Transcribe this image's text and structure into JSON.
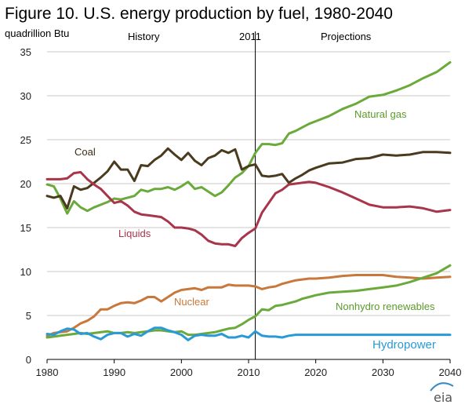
{
  "chart_data": {
    "type": "line",
    "title": "Figure 10. U.S. energy production by fuel, 1980-2040",
    "ylabel": "quadrillion Btu",
    "xlabel": "",
    "xlim": [
      1980,
      2040
    ],
    "ylim": [
      0,
      35
    ],
    "x_ticks": [
      1980,
      1990,
      2000,
      2010,
      2020,
      2030,
      2040
    ],
    "y_ticks": [
      0,
      5,
      10,
      15,
      20,
      25,
      30,
      35
    ],
    "grid": "horizontal",
    "divider_year": 2011,
    "divider_label": "2011",
    "region_labels": {
      "history": "History",
      "projections": "Projections"
    },
    "series": [
      {
        "name": "Natural gas",
        "color": "#6aaa3a",
        "x": [
          1980,
          1981,
          1982,
          1983,
          1984,
          1985,
          1986,
          1987,
          1988,
          1989,
          1990,
          1991,
          1992,
          1993,
          1994,
          1995,
          1996,
          1997,
          1998,
          1999,
          2000,
          2001,
          2002,
          2003,
          2004,
          2005,
          2006,
          2007,
          2008,
          2009,
          2010,
          2011,
          2012,
          2013,
          2014,
          2015,
          2016,
          2017,
          2018,
          2019,
          2020,
          2022,
          2024,
          2026,
          2028,
          2030,
          2032,
          2034,
          2036,
          2038,
          2040
        ],
        "values": [
          19.9,
          19.7,
          18.3,
          16.6,
          18.0,
          17.3,
          16.9,
          17.3,
          17.6,
          17.9,
          18.3,
          18.2,
          18.4,
          18.6,
          19.3,
          19.1,
          19.4,
          19.4,
          19.6,
          19.3,
          19.7,
          20.2,
          19.4,
          19.6,
          19.1,
          18.6,
          19.0,
          19.8,
          20.7,
          21.2,
          22.0,
          23.5,
          24.5,
          24.5,
          24.4,
          24.6,
          25.7,
          26.0,
          26.4,
          26.8,
          27.1,
          27.7,
          28.5,
          29.1,
          29.9,
          30.1,
          30.6,
          31.2,
          32.0,
          32.7,
          33.8
        ]
      },
      {
        "name": "Coal",
        "color": "#4a3a1e",
        "x": [
          1980,
          1981,
          1982,
          1983,
          1984,
          1985,
          1986,
          1987,
          1988,
          1989,
          1990,
          1991,
          1992,
          1993,
          1994,
          1995,
          1996,
          1997,
          1998,
          1999,
          2000,
          2001,
          2002,
          2003,
          2004,
          2005,
          2006,
          2007,
          2008,
          2009,
          2010,
          2011,
          2012,
          2013,
          2014,
          2015,
          2016,
          2017,
          2018,
          2019,
          2020,
          2022,
          2024,
          2026,
          2028,
          2030,
          2032,
          2034,
          2036,
          2038,
          2040
        ],
        "values": [
          18.6,
          18.4,
          18.6,
          17.2,
          19.7,
          19.3,
          19.5,
          20.1,
          20.7,
          21.4,
          22.5,
          21.6,
          21.6,
          20.3,
          22.1,
          22.0,
          22.7,
          23.2,
          24.0,
          23.3,
          22.7,
          23.5,
          22.6,
          22.1,
          22.9,
          23.2,
          23.8,
          23.5,
          23.9,
          21.6,
          22.0,
          22.2,
          20.9,
          20.8,
          20.9,
          21.1,
          20.1,
          20.6,
          21.0,
          21.5,
          21.8,
          22.3,
          22.4,
          22.8,
          22.9,
          23.3,
          23.2,
          23.3,
          23.6,
          23.6,
          23.5
        ]
      },
      {
        "name": "Liquids",
        "color": "#a8354a",
        "x": [
          1980,
          1981,
          1982,
          1983,
          1984,
          1985,
          1986,
          1987,
          1988,
          1989,
          1990,
          1991,
          1992,
          1993,
          1994,
          1995,
          1996,
          1997,
          1998,
          1999,
          2000,
          2001,
          2002,
          2003,
          2004,
          2005,
          2006,
          2007,
          2008,
          2009,
          2010,
          2011,
          2012,
          2013,
          2014,
          2015,
          2016,
          2017,
          2018,
          2019,
          2020,
          2022,
          2024,
          2026,
          2028,
          2030,
          2032,
          2034,
          2036,
          2038,
          2040
        ],
        "values": [
          20.5,
          20.5,
          20.5,
          20.6,
          21.2,
          21.3,
          20.5,
          19.9,
          19.4,
          18.6,
          17.8,
          18.0,
          17.5,
          16.8,
          16.5,
          16.4,
          16.3,
          16.2,
          15.7,
          15.0,
          15.0,
          14.9,
          14.7,
          14.2,
          13.5,
          13.2,
          13.1,
          13.1,
          12.9,
          13.8,
          14.4,
          14.9,
          16.7,
          17.8,
          18.9,
          19.3,
          19.9,
          20.0,
          20.1,
          20.2,
          20.1,
          19.6,
          19.0,
          18.3,
          17.6,
          17.3,
          17.3,
          17.4,
          17.2,
          16.8,
          17.0
        ]
      },
      {
        "name": "Nuclear",
        "color": "#c8783a",
        "x": [
          1980,
          1981,
          1982,
          1983,
          1984,
          1985,
          1986,
          1987,
          1988,
          1989,
          1990,
          1991,
          1992,
          1993,
          1994,
          1995,
          1996,
          1997,
          1998,
          1999,
          2000,
          2001,
          2002,
          2003,
          2004,
          2005,
          2006,
          2007,
          2008,
          2009,
          2010,
          2011,
          2012,
          2013,
          2014,
          2015,
          2016,
          2017,
          2018,
          2019,
          2020,
          2022,
          2024,
          2026,
          2028,
          2030,
          2032,
          2034,
          2036,
          2038,
          2040
        ],
        "values": [
          2.7,
          3.0,
          3.1,
          3.2,
          3.6,
          4.1,
          4.4,
          4.9,
          5.7,
          5.7,
          6.1,
          6.4,
          6.5,
          6.4,
          6.7,
          7.1,
          7.1,
          6.6,
          7.1,
          7.6,
          7.9,
          8.0,
          8.1,
          7.9,
          8.2,
          8.2,
          8.2,
          8.5,
          8.4,
          8.4,
          8.4,
          8.3,
          8.0,
          8.2,
          8.3,
          8.6,
          8.8,
          9.0,
          9.1,
          9.2,
          9.2,
          9.3,
          9.5,
          9.6,
          9.6,
          9.6,
          9.4,
          9.3,
          9.2,
          9.3,
          9.4
        ]
      },
      {
        "name": "Nonhydro renewables",
        "color": "#6aaa3a",
        "x": [
          1980,
          1981,
          1982,
          1983,
          1984,
          1985,
          1986,
          1987,
          1988,
          1989,
          1990,
          1991,
          1992,
          1993,
          1994,
          1995,
          1996,
          1997,
          1998,
          1999,
          2000,
          2001,
          2002,
          2003,
          2004,
          2005,
          2006,
          2007,
          2008,
          2009,
          2010,
          2011,
          2012,
          2013,
          2014,
          2015,
          2016,
          2017,
          2018,
          2019,
          2020,
          2022,
          2024,
          2026,
          2028,
          2030,
          2032,
          2034,
          2036,
          2038,
          2040
        ],
        "values": [
          2.5,
          2.6,
          2.7,
          2.8,
          2.9,
          3.0,
          2.9,
          3.0,
          3.1,
          3.2,
          3.0,
          3.0,
          3.1,
          3.0,
          3.1,
          3.2,
          3.3,
          3.3,
          3.2,
          3.1,
          3.2,
          2.8,
          2.8,
          2.9,
          3.0,
          3.1,
          3.3,
          3.5,
          3.6,
          4.0,
          4.5,
          4.9,
          5.7,
          5.6,
          6.1,
          6.2,
          6.4,
          6.6,
          6.9,
          7.1,
          7.3,
          7.6,
          7.7,
          7.8,
          8.0,
          8.2,
          8.4,
          8.8,
          9.3,
          9.8,
          10.7
        ]
      },
      {
        "name": "Hydropower",
        "color": "#2a9ad6",
        "x": [
          1980,
          1981,
          1982,
          1983,
          1984,
          1985,
          1986,
          1987,
          1988,
          1989,
          1990,
          1991,
          1992,
          1993,
          1994,
          1995,
          1996,
          1997,
          1998,
          1999,
          2000,
          2001,
          2002,
          2003,
          2004,
          2005,
          2006,
          2007,
          2008,
          2009,
          2010,
          2011,
          2012,
          2013,
          2014,
          2015,
          2016,
          2017,
          2018,
          2019,
          2020,
          2022,
          2024,
          2026,
          2028,
          2030,
          2032,
          2034,
          2036,
          2038,
          2040
        ],
        "values": [
          2.9,
          2.8,
          3.2,
          3.5,
          3.4,
          2.9,
          3.0,
          2.6,
          2.3,
          2.8,
          3.0,
          3.0,
          2.6,
          2.9,
          2.7,
          3.2,
          3.6,
          3.6,
          3.3,
          3.1,
          2.8,
          2.2,
          2.7,
          2.8,
          2.7,
          2.7,
          2.9,
          2.5,
          2.5,
          2.7,
          2.5,
          3.2,
          2.7,
          2.6,
          2.6,
          2.5,
          2.7,
          2.8,
          2.8,
          2.8,
          2.8,
          2.8,
          2.8,
          2.8,
          2.8,
          2.8,
          2.8,
          2.8,
          2.8,
          2.8,
          2.8
        ]
      }
    ],
    "series_labels": [
      "Natural gas",
      "Coal",
      "Liquids",
      "Nuclear",
      "Nonhydro renewables",
      "Hydropower"
    ],
    "logo": "eia"
  }
}
